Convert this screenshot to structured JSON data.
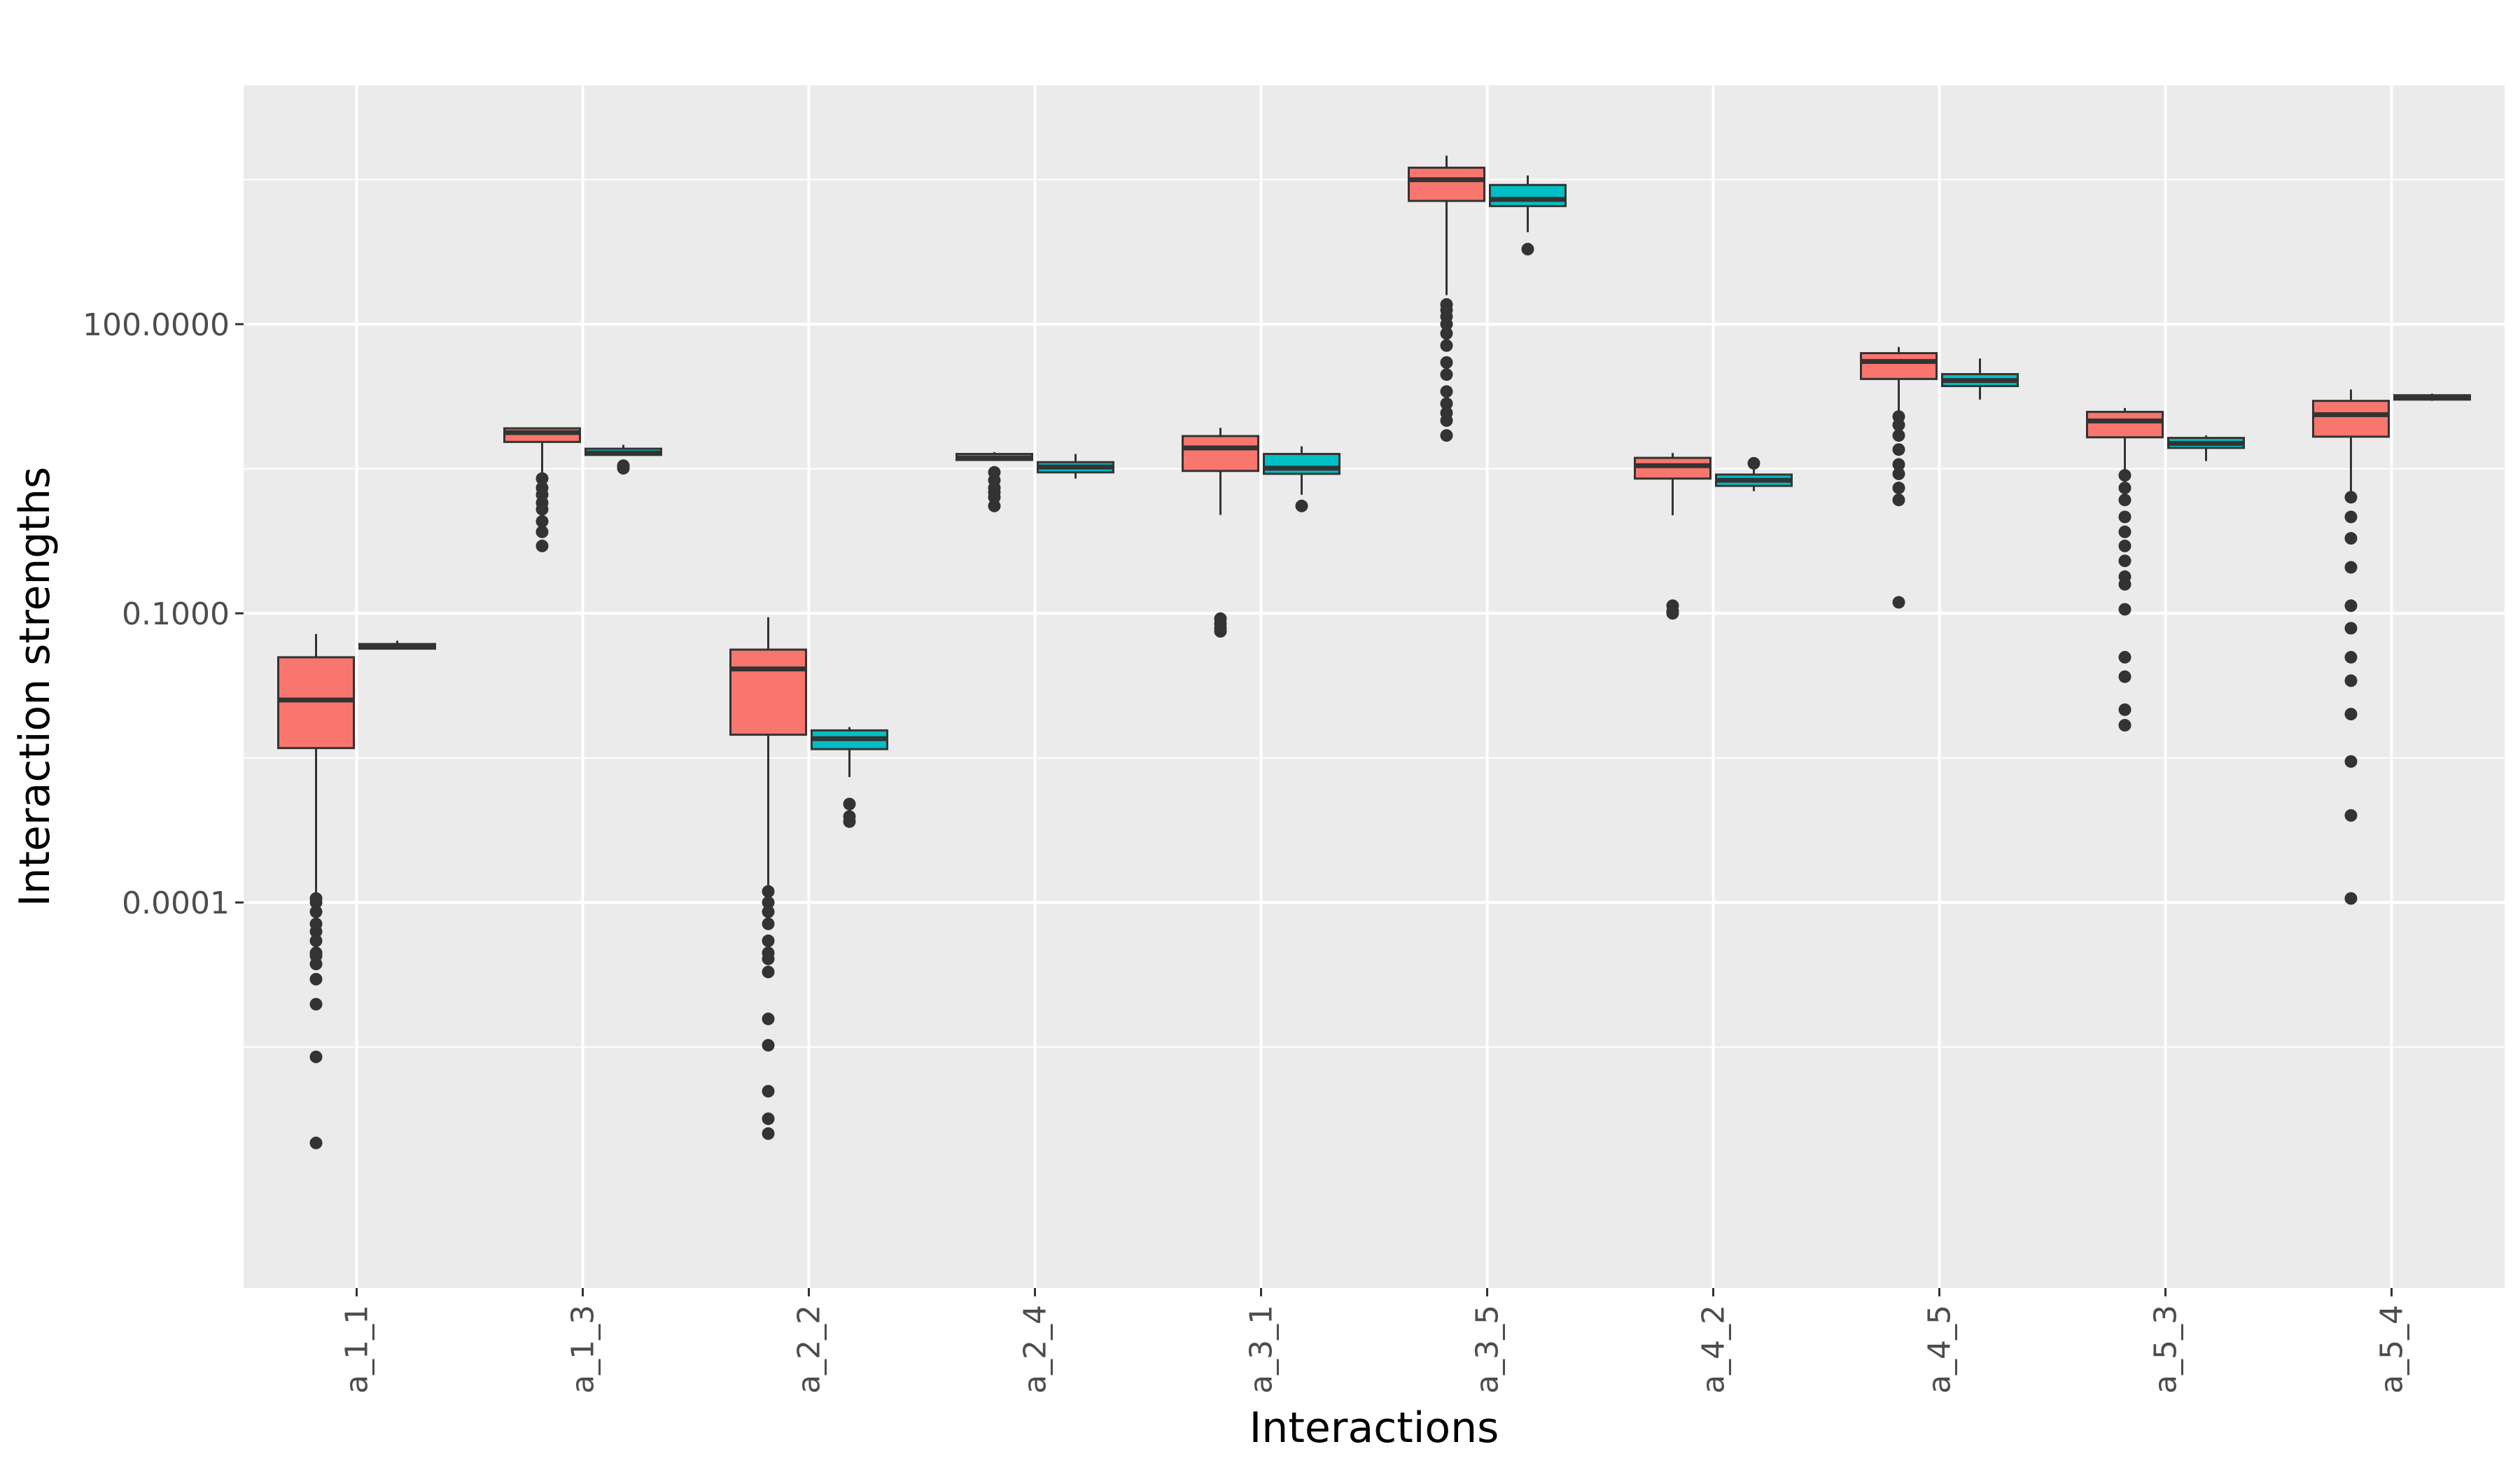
{
  "chart_data": {
    "type": "boxplot",
    "xlabel": "Interactions",
    "ylabel": "Interaction strengths",
    "y_scale": "log10",
    "ylim": [
      1e-08,
      30000
    ],
    "grid": true,
    "legend": "none",
    "y_ticks": [
      {
        "value": 0.0001,
        "label": "0.0001"
      },
      {
        "value": 0.1,
        "label": "0.1000"
      },
      {
        "value": 100,
        "label": "100.0000"
      }
    ],
    "colors": {
      "red": "#F8766D",
      "teal": "#00BFC4",
      "panel": "#EBEBEB",
      "grid": "#FFFFFF"
    },
    "categories": [
      "a_1_1",
      "a_1_3",
      "a_2_2",
      "a_2_4",
      "a_3_1",
      "a_3_5",
      "a_4_2",
      "a_4_5",
      "a_5_3",
      "a_5_4"
    ],
    "series": [
      {
        "color": "red",
        "boxes": [
          {
            "whisker_low": 0.0001,
            "q1": 0.004,
            "median": 0.0126,
            "q3": 0.035,
            "whisker_high": 0.061,
            "outliers": [
              0.00011,
              0.0001,
              8e-05,
              6e-05,
              5e-05,
              4e-05,
              3e-05,
              2.8e-05,
              2.3e-05,
              1.6e-05,
              8.8e-06,
              2.5e-06,
              3.2e-07
            ]
          },
          {
            "whisker_low": 2.6,
            "q1": 6.0,
            "median": 7.5,
            "q3": 8.3,
            "whisker_high": 8.5,
            "outliers": [
              2.5,
              2.0,
              1.7,
              1.4,
              1.2,
              0.9,
              0.7,
              0.5
            ]
          },
          {
            "whisker_low": 0.0001,
            "q1": 0.0055,
            "median": 0.0265,
            "q3": 0.042,
            "whisker_high": 0.091,
            "outliers": [
              0.00013,
              0.0001,
              8e-05,
              6e-05,
              4e-05,
              3e-05,
              2.6e-05,
              1.9e-05,
              6.2e-06,
              3.3e-06,
              1.1e-06,
              5.7e-07,
              4e-07
            ]
          },
          {
            "whisker_low": 3.8,
            "q1": 3.9,
            "median": 4.1,
            "q3": 4.5,
            "whisker_high": 4.7,
            "outliers": [
              2.9,
              2.4,
              2.0,
              1.8,
              1.6,
              1.3
            ]
          },
          {
            "whisker_low": 1.05,
            "q1": 3.0,
            "median": 5.2,
            "q3": 6.9,
            "whisker_high": 8.4,
            "outliers": [
              0.088,
              0.078,
              0.07,
              0.065
            ]
          },
          {
            "whisker_low": 200,
            "q1": 1900,
            "median": 3150,
            "q3": 4200,
            "whisker_high": 5600,
            "outliers": [
              160,
              140,
              120,
              100,
              80,
              60,
              40,
              30,
              20,
              15,
              12,
              10,
              7
            ]
          },
          {
            "whisker_low": 1.04,
            "q1": 2.5,
            "median": 3.4,
            "q3": 4.1,
            "whisker_high": 4.6,
            "outliers": [
              0.12,
              0.105,
              0.1
            ]
          },
          {
            "whisker_low": 11.8,
            "q1": 27,
            "median": 41,
            "q3": 50,
            "whisker_high": 58,
            "outliers": [
              11,
              9,
              7,
              5,
              3.5,
              2.8,
              2.0,
              1.5,
              0.13
            ]
          },
          {
            "whisker_low": 2.8,
            "q1": 6.7,
            "median": 9.9,
            "q3": 12.3,
            "whisker_high": 13.5,
            "outliers": [
              2.7,
              2.0,
              1.5,
              1.0,
              0.7,
              0.5,
              0.35,
              0.24,
              0.2,
              0.11,
              0.035,
              0.022,
              0.01,
              0.0069
            ]
          },
          {
            "whisker_low": 1.7,
            "q1": 6.8,
            "median": 11.5,
            "q3": 16,
            "whisker_high": 21,
            "outliers": [
              1.6,
              1.0,
              0.6,
              0.3,
              0.12,
              0.07,
              0.035,
              0.02,
              0.009,
              0.0029,
              0.0008,
              0.00011
            ]
          }
        ]
      },
      {
        "color": "teal",
        "boxes": [
          {
            "whisker_low": 0.042,
            "q1": 0.043,
            "median": 0.045,
            "q3": 0.048,
            "whisker_high": 0.052,
            "outliers": []
          },
          {
            "whisker_low": 4.4,
            "q1": 4.4,
            "median": 4.6,
            "q3": 5.1,
            "whisker_high": 5.6,
            "outliers": [
              3.4,
              3.2
            ]
          },
          {
            "whisker_low": 0.002,
            "q1": 0.0039,
            "median": 0.005,
            "q3": 0.0061,
            "whisker_high": 0.0066,
            "outliers": [
              0.00105,
              0.00078,
              0.00069
            ]
          },
          {
            "whisker_low": 2.5,
            "q1": 2.9,
            "median": 3.3,
            "q3": 3.7,
            "whisker_high": 4.5,
            "outliers": []
          },
          {
            "whisker_low": 1.7,
            "q1": 2.8,
            "median": 3.2,
            "q3": 4.5,
            "whisker_high": 5.4,
            "outliers": [
              1.3
            ]
          },
          {
            "whisker_low": 900,
            "q1": 1680,
            "median": 1970,
            "q3": 2780,
            "whisker_high": 3490,
            "outliers": [
              600
            ]
          },
          {
            "whisker_low": 1.85,
            "q1": 2.1,
            "median": 2.4,
            "q3": 2.75,
            "whisker_high": 3.5,
            "outliers": [
              3.6
            ]
          },
          {
            "whisker_low": 16.5,
            "q1": 22.8,
            "median": 26,
            "q3": 30.3,
            "whisker_high": 44,
            "outliers": []
          },
          {
            "whisker_low": 3.8,
            "q1": 5.2,
            "median": 5.8,
            "q3": 6.6,
            "whisker_high": 7.0,
            "outliers": []
          },
          {
            "whisker_low": 16,
            "q1": 16.5,
            "median": 17.5,
            "q3": 18.3,
            "whisker_high": 19,
            "outliers": []
          }
        ]
      }
    ]
  }
}
